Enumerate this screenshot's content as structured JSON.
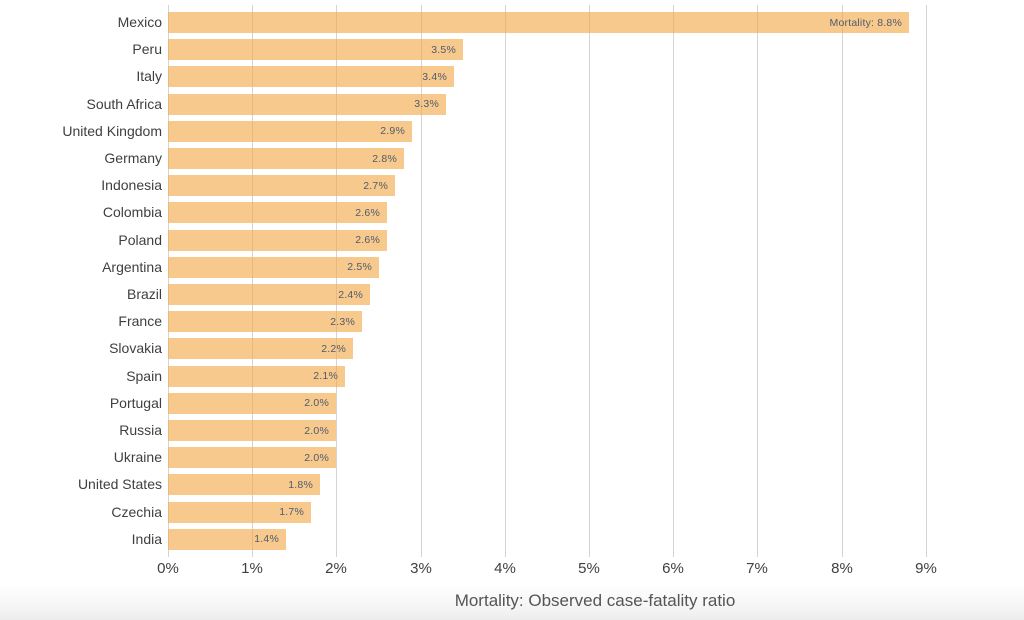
{
  "chart_data": {
    "type": "bar",
    "orientation": "horizontal",
    "title": "",
    "xlabel": "Mortality: Observed case-fatality ratio",
    "ylabel": "",
    "categories": [
      "Mexico",
      "Peru",
      "Italy",
      "South Africa",
      "United Kingdom",
      "Germany",
      "Indonesia",
      "Colombia",
      "Poland",
      "Argentina",
      "Brazil",
      "France",
      "Slovakia",
      "Spain",
      "Portugal",
      "Russia",
      "Ukraine",
      "United States",
      "Czechia",
      "India"
    ],
    "values": [
      8.8,
      3.5,
      3.4,
      3.3,
      2.9,
      2.8,
      2.7,
      2.6,
      2.6,
      2.5,
      2.4,
      2.3,
      2.2,
      2.1,
      2.0,
      2.0,
      2.0,
      1.8,
      1.7,
      1.4
    ],
    "bar_labels": [
      "Mortality: 8.8%",
      "3.5%",
      "3.4%",
      "3.3%",
      "2.9%",
      "2.8%",
      "2.7%",
      "2.6%",
      "2.6%",
      "2.5%",
      "2.4%",
      "2.3%",
      "2.2%",
      "2.1%",
      "2.0%",
      "2.0%",
      "2.0%",
      "1.8%",
      "1.7%",
      "1.4%"
    ],
    "x_ticks": [
      "0%",
      "1%",
      "2%",
      "3%",
      "4%",
      "5%",
      "6%",
      "7%",
      "8%",
      "9%"
    ],
    "xlim": [
      0,
      10
    ],
    "grid": true,
    "legend_position": "none",
    "colors": {
      "bar_fill": "#f2a846",
      "bar_opacity": 0.62,
      "gridline": "#d4d4d4",
      "bar_label_text": "#4f5b6e",
      "axis_text": "#3f3f3f",
      "axis_title_text": "#555555",
      "background": "#ffffff"
    }
  }
}
